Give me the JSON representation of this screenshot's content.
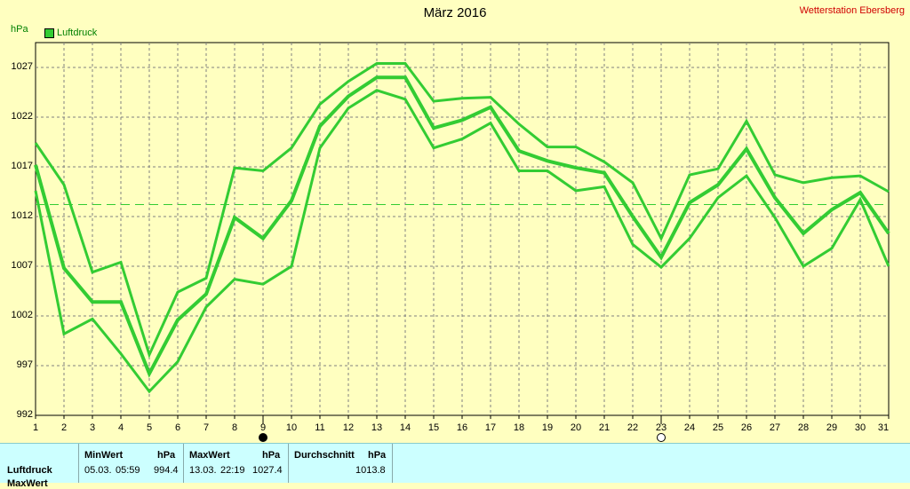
{
  "header": {
    "title": "März 2016",
    "station": "Wetterstation Ebersberg",
    "unit": "hPa"
  },
  "legend": {
    "label": "Luftdruck",
    "color": "#33cc33"
  },
  "chart_data": {
    "type": "line",
    "x": [
      1,
      2,
      3,
      4,
      5,
      6,
      7,
      8,
      9,
      10,
      11,
      12,
      13,
      14,
      15,
      16,
      17,
      18,
      19,
      20,
      21,
      22,
      23,
      24,
      25,
      26,
      27,
      28,
      29,
      30,
      31
    ],
    "ylim": [
      992,
      1029.5
    ],
    "yticks": [
      992,
      997,
      1002,
      1007,
      1012,
      1017,
      1022,
      1027
    ],
    "grid": true,
    "series": [
      {
        "role": "max",
        "values": [
          1019.4,
          1015.2,
          1006.4,
          1007.4,
          998.1,
          1004.4,
          1005.8,
          1016.9,
          1016.6,
          1018.9,
          1023.3,
          1025.6,
          1027.4,
          1027.4,
          1023.6,
          1023.9,
          1024.0,
          1021.3,
          1019.0,
          1019.0,
          1017.5,
          1015.4,
          1009.8,
          1016.2,
          1016.8,
          1021.6,
          1016.2,
          1015.4,
          1015.9,
          1016.1,
          1014.5
        ]
      },
      {
        "role": "mean",
        "values": [
          1017.2,
          1006.8,
          1003.4,
          1003.4,
          996.2,
          1001.6,
          1004.2,
          1011.9,
          1009.8,
          1013.6,
          1021.1,
          1024.1,
          1026.0,
          1026.0,
          1020.9,
          1021.7,
          1023.0,
          1018.6,
          1017.6,
          1016.9,
          1016.4,
          1012.0,
          1007.9,
          1013.4,
          1015.2,
          1018.8,
          1013.9,
          1010.3,
          1012.7,
          1014.4,
          1010.3
        ]
      },
      {
        "role": "min",
        "values": [
          1014.6,
          1000.2,
          1001.7,
          998.2,
          994.4,
          997.4,
          1002.9,
          1005.7,
          1005.2,
          1007.0,
          1018.9,
          1022.9,
          1024.7,
          1023.8,
          1018.9,
          1019.8,
          1021.4,
          1016.6,
          1016.6,
          1014.6,
          1015.0,
          1009.2,
          1006.9,
          1009.8,
          1013.9,
          1016.1,
          1011.9,
          1007.0,
          1008.8,
          1013.7,
          1007.0
        ]
      }
    ],
    "reference_line": {
      "value": 1013.2,
      "style": "dashed"
    },
    "markers": [
      {
        "x": 9,
        "symbol": "full-moon-icon"
      },
      {
        "x": 23,
        "symbol": "new-moon-icon"
      }
    ]
  },
  "stats": {
    "row_label": "Luftdruck",
    "row_label_next": "MaxWert",
    "min": {
      "header": "MinWert",
      "unit": "hPa",
      "date": "05.03.",
      "time": "05:59",
      "value": "994.4"
    },
    "max": {
      "header": "MaxWert",
      "unit": "hPa",
      "date": "13.03.",
      "time": "22:19",
      "value": "1027.4"
    },
    "avg": {
      "header": "Durchschnitt",
      "unit": "hPa",
      "value": "1013.8"
    }
  }
}
